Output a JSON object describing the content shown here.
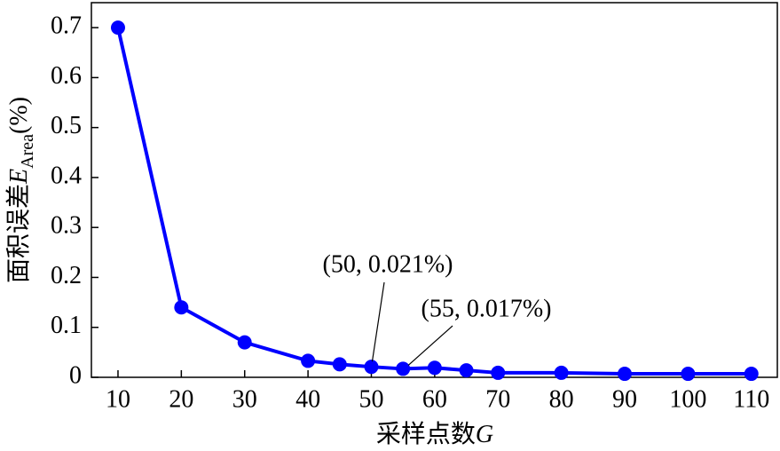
{
  "chart_data": {
    "type": "line",
    "ylabel": "面积误差",
    "ylabel_var": "E",
    "ylabel_sub": "Area",
    "ylabel_suffix": "(%)",
    "xlabel": "采样点数",
    "xlabel_var": "G",
    "x": [
      10,
      20,
      30,
      40,
      45,
      50,
      55,
      60,
      65,
      70,
      80,
      90,
      100,
      110
    ],
    "series": [
      {
        "name": "面积误差",
        "color": "#0000ff",
        "values": [
          0.7,
          0.14,
          0.07,
          0.033,
          0.026,
          0.021,
          0.017,
          0.019,
          0.014,
          0.009,
          0.009,
          0.007,
          0.007,
          0.007
        ]
      }
    ],
    "xlim": [
      5.8,
      114.1
    ],
    "ylim": [
      0,
      0.75
    ],
    "xticks": [
      10,
      20,
      30,
      40,
      50,
      60,
      70,
      80,
      90,
      100,
      110
    ],
    "yticks": [
      0,
      0.1,
      0.2,
      0.3,
      0.4,
      0.5,
      0.6,
      0.7
    ],
    "annotations": [
      "(50, 0.021%)",
      "(55, 0.017%)"
    ]
  }
}
